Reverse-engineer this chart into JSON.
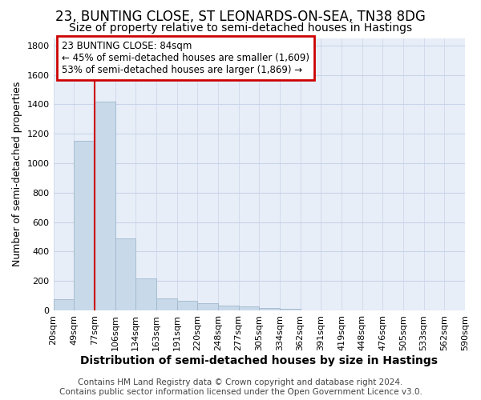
{
  "title1": "23, BUNTING CLOSE, ST LEONARDS-ON-SEA, TN38 8DG",
  "title2": "Size of property relative to semi-detached houses in Hastings",
  "xlabel": "Distribution of semi-detached houses by size in Hastings",
  "ylabel": "Number of semi-detached properties",
  "footer1": "Contains HM Land Registry data © Crown copyright and database right 2024.",
  "footer2": "Contains public sector information licensed under the Open Government Licence v3.0.",
  "annotation_title": "23 BUNTING CLOSE: 84sqm",
  "annotation_line1": "← 45% of semi-detached houses are smaller (1,609)",
  "annotation_line2": "53% of semi-detached houses are larger (1,869) →",
  "bar_values": [
    75,
    1150,
    1420,
    490,
    215,
    80,
    65,
    50,
    35,
    25,
    18,
    10,
    0,
    0,
    0,
    0,
    0,
    0,
    0,
    0
  ],
  "categories": [
    "20sqm",
    "49sqm",
    "77sqm",
    "106sqm",
    "134sqm",
    "163sqm",
    "191sqm",
    "220sqm",
    "248sqm",
    "277sqm",
    "305sqm",
    "334sqm",
    "362sqm",
    "391sqm",
    "419sqm",
    "448sqm",
    "476sqm",
    "505sqm",
    "533sqm",
    "562sqm",
    "590sqm"
  ],
  "bar_color": "#c8d9ea",
  "bar_edge_color": "#a0b8cc",
  "red_line_index": 2,
  "ylim": [
    0,
    1850
  ],
  "yticks": [
    0,
    200,
    400,
    600,
    800,
    1000,
    1200,
    1400,
    1600,
    1800
  ],
  "grid_color": "#c8d4e8",
  "background_color": "#e8eef8",
  "annotation_box_facecolor": "#ffffff",
  "annotation_box_edgecolor": "#cc0000",
  "title1_fontsize": 12,
  "title2_fontsize": 10,
  "xlabel_fontsize": 10,
  "ylabel_fontsize": 9,
  "tick_fontsize": 8,
  "footer_fontsize": 7.5
}
